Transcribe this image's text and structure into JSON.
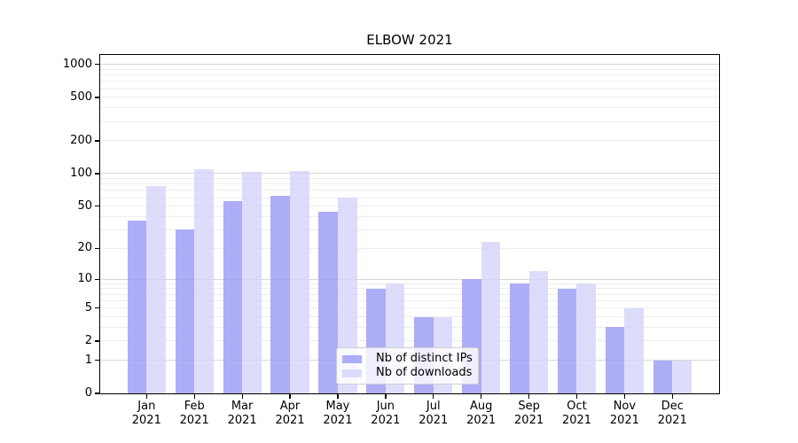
{
  "figure": {
    "title": "ELBOW 2021",
    "axis_color": "#000000",
    "grid_minor_color": "#ededed",
    "grid_major_color": "#d8d8d8",
    "background_color": "#ffffff"
  },
  "chart_data": {
    "type": "bar",
    "title": "ELBOW 2021",
    "categories": [
      "Jan 2021",
      "Feb 2021",
      "Mar 2021",
      "Apr 2021",
      "May 2021",
      "Jun 2021",
      "Jul 2021",
      "Aug 2021",
      "Sep 2021",
      "Oct 2021",
      "Nov 2021",
      "Dec 2021"
    ],
    "series": [
      {
        "name": "Nb of distinct IPs",
        "color": "#9898f6",
        "values": [
          37,
          30,
          56,
          62,
          44,
          8,
          4,
          10,
          9,
          8,
          3,
          1
        ]
      },
      {
        "name": "Nb of downloads",
        "color": "#d5d5fa",
        "values": [
          77,
          110,
          104,
          106,
          60,
          9,
          4,
          23,
          12,
          9,
          5,
          1
        ]
      }
    ],
    "xlabel": "",
    "ylabel": "",
    "yscale": "log1p",
    "y_ticks": [
      0,
      1,
      2,
      5,
      10,
      20,
      50,
      100,
      200,
      500,
      1000
    ],
    "ylim": [
      0,
      1237
    ],
    "grid": true,
    "legend_position": "lower center"
  }
}
